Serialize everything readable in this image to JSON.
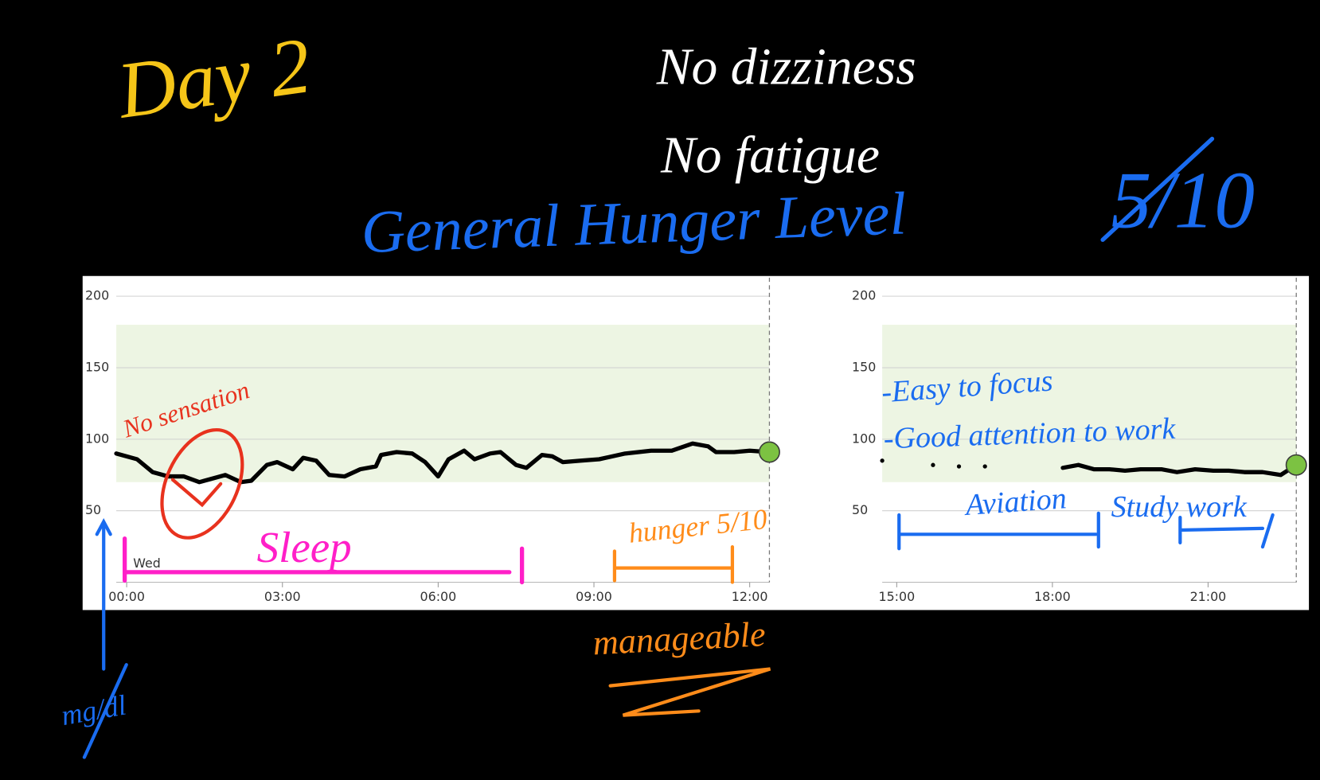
{
  "chart_data": [
    {
      "type": "line",
      "day_label": "Wed",
      "xlim": [
        -0.2,
        12.38
      ],
      "ylim": [
        0,
        210
      ],
      "xticks": [
        {
          "value": 0,
          "label": "00:00"
        },
        {
          "value": 3,
          "label": "03:00"
        },
        {
          "value": 6,
          "label": "06:00"
        },
        {
          "value": 9,
          "label": "09:00"
        },
        {
          "value": 12,
          "label": "12:00"
        }
      ],
      "yticks": [
        50,
        100,
        150,
        200
      ],
      "target_range": [
        70,
        180
      ],
      "target_color": "#edf5e3",
      "grid": true,
      "color": "#000000",
      "end_marker_color": "#7cc242",
      "x": [
        -0.2,
        0.2,
        0.5,
        0.8,
        1.1,
        1.4,
        1.9,
        2.2,
        2.4,
        2.7,
        2.9,
        3.2,
        3.4,
        3.65,
        3.9,
        4.2,
        4.5,
        4.8,
        4.9,
        5.2,
        5.5,
        5.75,
        6.0,
        6.2,
        6.5,
        6.7,
        7.0,
        7.2,
        7.5,
        7.7,
        8.0,
        8.2,
        8.4,
        8.75,
        9.1,
        9.6,
        10.1,
        10.5,
        10.9,
        11.2,
        11.35,
        11.7,
        12.0,
        12.38
      ],
      "values": [
        90,
        86,
        77,
        74,
        74,
        70,
        75,
        70,
        71,
        82,
        84,
        79,
        87,
        85,
        75,
        74,
        79,
        81,
        89,
        91,
        90,
        84,
        74,
        86,
        92,
        86,
        90,
        91,
        82,
        80,
        89,
        88,
        84,
        85,
        86,
        90,
        92,
        92,
        97,
        95,
        91,
        91,
        92,
        91
      ]
    },
    {
      "type": "line",
      "xlim": [
        14.72,
        22.7
      ],
      "ylim": [
        0,
        210
      ],
      "xticks": [
        {
          "value": 15,
          "label": "15:00"
        },
        {
          "value": 18,
          "label": "18:00"
        },
        {
          "value": 21,
          "label": "21:00"
        }
      ],
      "yticks": [
        50,
        100,
        150,
        200
      ],
      "target_range": [
        70,
        180
      ],
      "target_color": "#edf5e3",
      "grid": true,
      "color": "#000000",
      "end_marker_color": "#7cc242",
      "x": [
        14.72,
        null,
        15.7,
        null,
        16.2,
        null,
        16.7,
        null,
        18.2,
        18.5,
        18.8,
        19.1,
        19.4,
        19.7,
        20.1,
        20.4,
        20.75,
        21.1,
        21.4,
        21.7,
        22.05,
        22.4,
        22.7
      ],
      "values": [
        85,
        null,
        82,
        null,
        81,
        null,
        81,
        null,
        80,
        82,
        79,
        79,
        78,
        79,
        79,
        77,
        79,
        78,
        78,
        77,
        77,
        75,
        82
      ]
    }
  ],
  "annotations": [
    {
      "text": "Day 2",
      "color": "#f5c518"
    },
    {
      "text": "No dizziness",
      "color": "#ffffff"
    },
    {
      "text": "No fatigue",
      "color": "#ffffff"
    },
    {
      "text": "General Hunger Level",
      "color": "#1a6cf0"
    },
    {
      "text": "5/10",
      "color": "#1a6cf0"
    },
    {
      "text": "No sensation",
      "color": "#e8321e"
    },
    {
      "text": "Sleep",
      "color": "#ff1fc8"
    },
    {
      "text": "hunger 5/10",
      "color": "#ff8c1a"
    },
    {
      "text": "manageable",
      "color": "#ff8c1a"
    },
    {
      "text": "mg/dl",
      "color": "#1a6cf0"
    },
    {
      "text": "-Easy to focus",
      "color": "#1a6cf0"
    },
    {
      "text": "-Good attention to work",
      "color": "#1a6cf0"
    },
    {
      "text": "Aviation",
      "color": "#1a6cf0"
    },
    {
      "text": "Study work",
      "color": "#1a6cf0"
    }
  ]
}
